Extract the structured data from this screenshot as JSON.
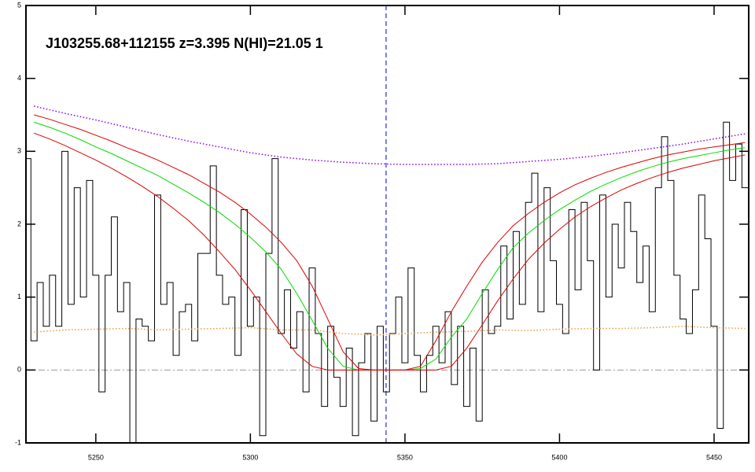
{
  "chart_data": {
    "type": "line",
    "title": "J103255.68+112155 z=3.395 N(HI)=21.05 1",
    "xlim": [
      5227.4,
      5461.2
    ],
    "ylim": [
      -1,
      5
    ],
    "xticks": [
      5250,
      5300,
      5350,
      5400,
      5450
    ],
    "yticks": [
      -1,
      0,
      1,
      2,
      3,
      4,
      5
    ],
    "hline": {
      "value": 0,
      "color": "#999999"
    },
    "vline": {
      "value": 5343.9,
      "color": "#0000cc"
    },
    "series": [
      {
        "color": "#000000",
        "style": "solid",
        "steps": true,
        "x": [
          5228,
          5230,
          5232,
          5234,
          5236,
          5238,
          5240,
          5242,
          5244,
          5246,
          5248,
          5250,
          5252,
          5254,
          5256,
          5258,
          5260,
          5262,
          5264,
          5266,
          5268,
          5270,
          5272,
          5274,
          5276,
          5278,
          5280,
          5282,
          5284,
          5286,
          5288,
          5290,
          5292,
          5294,
          5296,
          5298,
          5300,
          5302,
          5304,
          5306,
          5308,
          5310,
          5312,
          5314,
          5316,
          5318,
          5320,
          5322,
          5324,
          5326,
          5328,
          5330,
          5332,
          5334,
          5336,
          5338,
          5340,
          5342,
          5344,
          5346,
          5348,
          5350,
          5352,
          5354,
          5356,
          5358,
          5360,
          5362,
          5364,
          5366,
          5368,
          5370,
          5372,
          5374,
          5376,
          5378,
          5380,
          5382,
          5384,
          5386,
          5388,
          5390,
          5392,
          5394,
          5396,
          5398,
          5400,
          5402,
          5404,
          5406,
          5408,
          5410,
          5412,
          5414,
          5416,
          5418,
          5420,
          5422,
          5424,
          5426,
          5428,
          5430,
          5432,
          5434,
          5436,
          5438,
          5440,
          5442,
          5444,
          5446,
          5448,
          5450,
          5452,
          5454,
          5456,
          5458,
          5460
        ],
        "values": [
          2.9,
          0.4,
          1.2,
          0.6,
          1.3,
          0.6,
          3.0,
          0.9,
          2.5,
          1.0,
          2.6,
          1.3,
          -0.3,
          1.3,
          2.1,
          0.8,
          1.2,
          -1.0,
          0.7,
          0.6,
          0.4,
          2.4,
          0.9,
          1.2,
          0.2,
          0.8,
          0.9,
          0.4,
          1.6,
          1.6,
          2.8,
          1.3,
          0.9,
          1.0,
          0.2,
          2.2,
          0.6,
          1.0,
          -0.9,
          1.6,
          2.9,
          0.5,
          1.1,
          0.3,
          0.8,
          -0.3,
          1.4,
          0.5,
          -0.5,
          0.6,
          -0.1,
          -0.5,
          0.3,
          -0.9,
          0.1,
          0.5,
          -0.7,
          0.6,
          -0.3,
          0.5,
          1.0,
          0.1,
          1.4,
          0.2,
          -0.3,
          0.2,
          0.6,
          0.1,
          0.8,
          -0.2,
          0.6,
          -0.5,
          0.3,
          -0.7,
          1.1,
          0.5,
          0.6,
          1.7,
          0.7,
          1.9,
          0.9,
          2.3,
          2.7,
          0.8,
          2.5,
          1.5,
          0.9,
          0.5,
          2.2,
          1.1,
          2.3,
          1.5,
          0.0,
          2.4,
          1.0,
          2.0,
          1.4,
          2.3,
          1.9,
          1.2,
          1.7,
          0.8,
          2.5,
          3.2,
          2.6,
          1.3,
          0.7,
          0.5,
          1.1,
          2.4,
          1.8,
          0.6,
          -0.8,
          3.4,
          2.6,
          3.1,
          2.5
        ]
      },
      {
        "color": "#00dd00",
        "style": "solid",
        "x": [
          5230,
          5235,
          5240,
          5245,
          5250,
          5255,
          5260,
          5265,
          5270,
          5275,
          5280,
          5285,
          5290,
          5295,
          5300,
          5305,
          5310,
          5315,
          5320,
          5325,
          5330,
          5335,
          5340,
          5345,
          5350,
          5355,
          5360,
          5365,
          5370,
          5375,
          5380,
          5385,
          5390,
          5395,
          5400,
          5405,
          5410,
          5415,
          5420,
          5425,
          5430,
          5435,
          5440,
          5445,
          5450,
          5455,
          5460
        ],
        "values": [
          3.4,
          3.33,
          3.25,
          3.16,
          3.06,
          2.97,
          2.87,
          2.77,
          2.67,
          2.55,
          2.43,
          2.3,
          2.16,
          2.0,
          1.82,
          1.62,
          1.38,
          1.05,
          0.68,
          0.3,
          0.05,
          0,
          0,
          0,
          0,
          0.02,
          0.15,
          0.45,
          0.7,
          1.05,
          1.38,
          1.68,
          1.88,
          2.05,
          2.2,
          2.33,
          2.45,
          2.55,
          2.64,
          2.72,
          2.79,
          2.85,
          2.9,
          2.94,
          2.98,
          3.02,
          3.05
        ]
      },
      {
        "color": "#dd0000",
        "style": "solid",
        "x": [
          5230,
          5235,
          5240,
          5245,
          5250,
          5255,
          5260,
          5265,
          5270,
          5275,
          5280,
          5285,
          5290,
          5295,
          5300,
          5305,
          5310,
          5315,
          5320,
          5325,
          5330,
          5335,
          5340,
          5345,
          5350,
          5355,
          5360,
          5365,
          5370,
          5375,
          5380,
          5385,
          5390,
          5395,
          5400,
          5405,
          5410,
          5415,
          5420,
          5425,
          5430,
          5435,
          5440,
          5445,
          5450,
          5455,
          5460
        ],
        "values": [
          3.5,
          3.44,
          3.37,
          3.3,
          3.22,
          3.14,
          3.05,
          2.97,
          2.88,
          2.78,
          2.68,
          2.56,
          2.44,
          2.3,
          2.14,
          1.96,
          1.75,
          1.5,
          1.15,
          0.7,
          0.25,
          0.02,
          0,
          0,
          0,
          0.05,
          0.4,
          0.8,
          1.15,
          1.48,
          1.75,
          1.98,
          2.15,
          2.3,
          2.43,
          2.54,
          2.63,
          2.71,
          2.78,
          2.84,
          2.9,
          2.95,
          2.99,
          3.03,
          3.06,
          3.09,
          3.12
        ]
      },
      {
        "color": "#dd0000",
        "style": "solid",
        "x": [
          5230,
          5235,
          5240,
          5245,
          5250,
          5255,
          5260,
          5265,
          5270,
          5275,
          5280,
          5285,
          5290,
          5295,
          5300,
          5305,
          5310,
          5315,
          5320,
          5325,
          5330,
          5335,
          5340,
          5345,
          5350,
          5355,
          5360,
          5365,
          5370,
          5375,
          5380,
          5385,
          5390,
          5395,
          5400,
          5405,
          5410,
          5415,
          5420,
          5425,
          5430,
          5435,
          5440,
          5445,
          5450,
          5455,
          5460
        ],
        "values": [
          3.25,
          3.17,
          3.08,
          2.98,
          2.88,
          2.77,
          2.65,
          2.52,
          2.38,
          2.22,
          2.05,
          1.85,
          1.62,
          1.38,
          1.1,
          0.8,
          0.5,
          0.22,
          0.05,
          0,
          0,
          0,
          0,
          0,
          0,
          0,
          0,
          0.05,
          0.3,
          0.62,
          0.95,
          1.25,
          1.52,
          1.74,
          1.93,
          2.1,
          2.24,
          2.36,
          2.47,
          2.56,
          2.64,
          2.71,
          2.77,
          2.82,
          2.87,
          2.91,
          2.95
        ]
      },
      {
        "color": "#8800ff",
        "style": "dotted",
        "x": [
          5230,
          5240,
          5250,
          5260,
          5270,
          5280,
          5290,
          5300,
          5310,
          5320,
          5330,
          5340,
          5350,
          5360,
          5370,
          5380,
          5390,
          5400,
          5410,
          5420,
          5430,
          5440,
          5450,
          5460
        ],
        "values": [
          3.62,
          3.52,
          3.43,
          3.33,
          3.23,
          3.14,
          3.06,
          2.98,
          2.92,
          2.88,
          2.85,
          2.83,
          2.82,
          2.82,
          2.82,
          2.83,
          2.86,
          2.89,
          2.93,
          2.98,
          3.04,
          3.1,
          3.17,
          3.24
        ]
      },
      {
        "color": "#ee9944",
        "style": "dotted",
        "x": [
          5230,
          5240,
          5250,
          5260,
          5270,
          5280,
          5290,
          5300,
          5310,
          5320,
          5330,
          5340,
          5350,
          5360,
          5370,
          5380,
          5390,
          5400,
          5410,
          5420,
          5430,
          5440,
          5450,
          5460
        ],
        "values": [
          0.52,
          0.55,
          0.56,
          0.57,
          0.55,
          0.56,
          0.57,
          0.58,
          0.55,
          0.55,
          0.5,
          0.48,
          0.5,
          0.52,
          0.53,
          0.55,
          0.54,
          0.56,
          0.57,
          0.57,
          0.58,
          0.6,
          0.58,
          0.57
        ]
      }
    ]
  }
}
